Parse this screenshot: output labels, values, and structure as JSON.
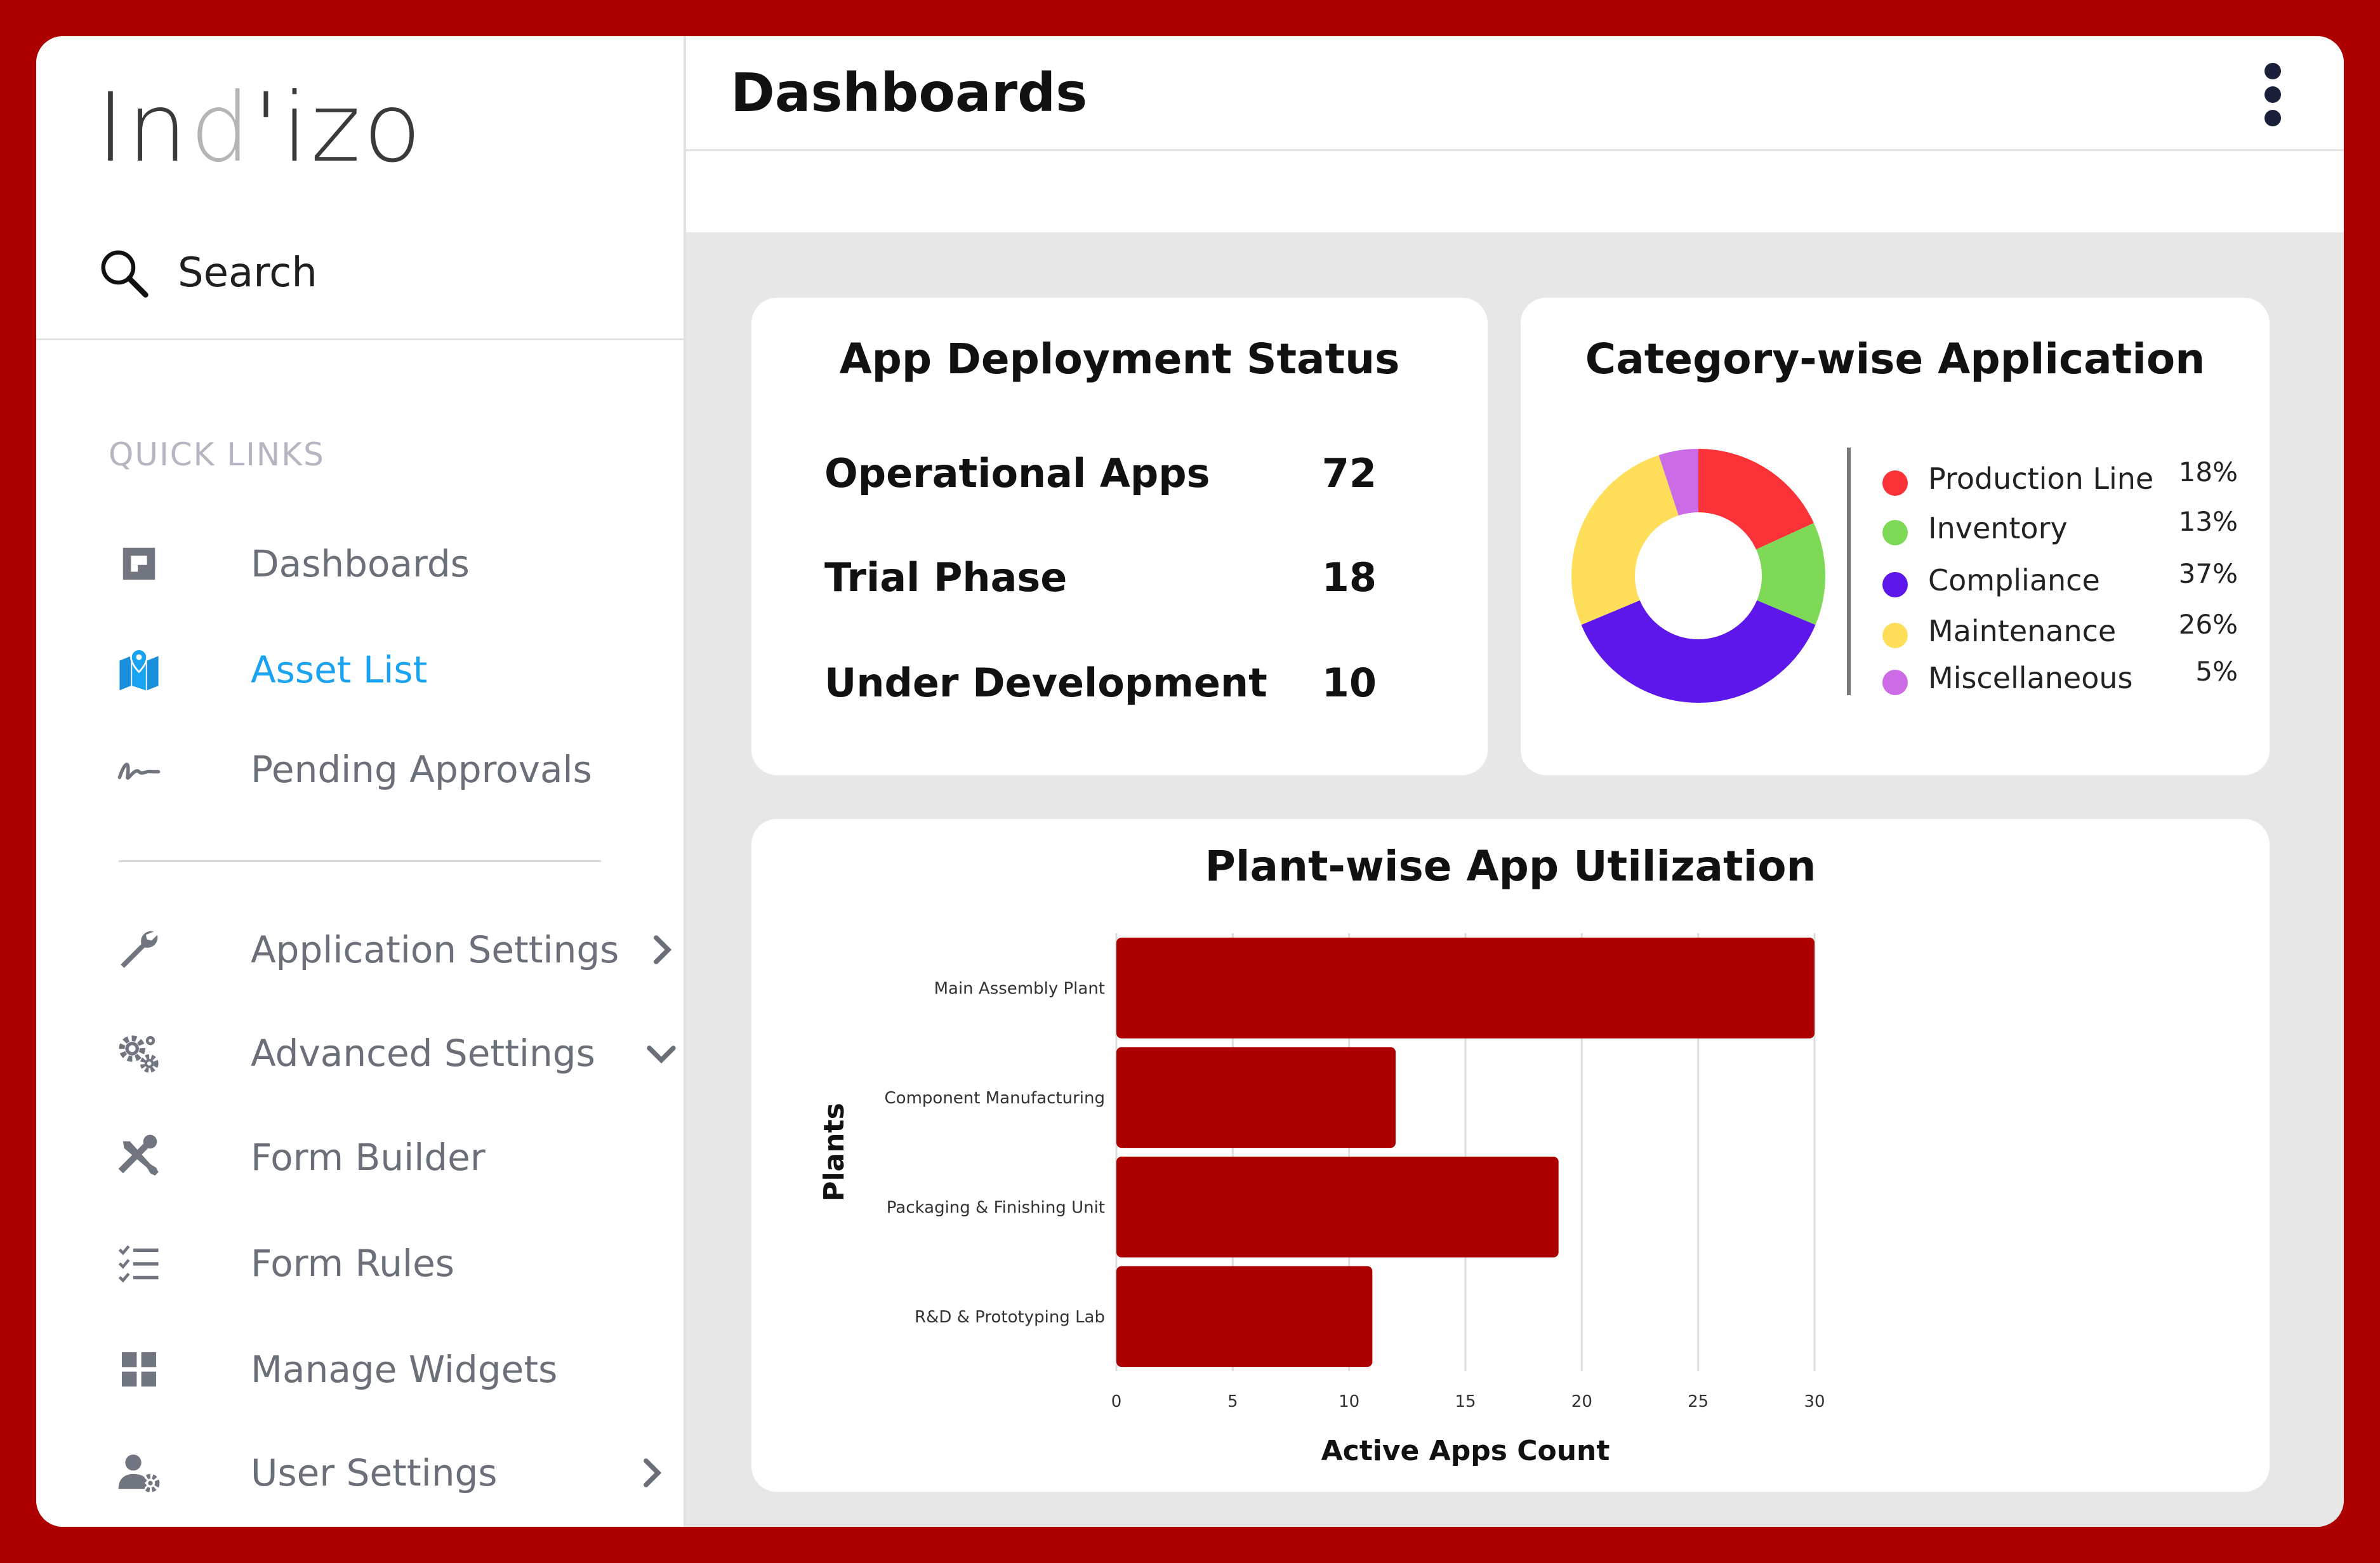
{
  "app": {
    "logo_main_1": "In",
    "logo_accent": "d",
    "logo_main_2": "'izo"
  },
  "sidebar": {
    "search_label": "Search",
    "quick_links_heading": "QUICK LINKS",
    "items": [
      {
        "label": "Dashboards",
        "icon": "dashboard-icon"
      },
      {
        "label": "Asset List",
        "icon": "map-pin-icon",
        "active": true
      },
      {
        "label": "Pending Approvals",
        "icon": "signature-icon"
      },
      {
        "label": "Application Settings",
        "icon": "wrench-icon",
        "chevron": "right"
      },
      {
        "label": "Advanced Settings",
        "icon": "gears-icon",
        "chevron": "down"
      },
      {
        "label": "Form Builder",
        "icon": "tools-icon"
      },
      {
        "label": "Form Rules",
        "icon": "checklist-icon"
      },
      {
        "label": "Manage Widgets",
        "icon": "grid-icon"
      },
      {
        "label": "User Settings",
        "icon": "user-gear-icon",
        "chevron": "right"
      }
    ]
  },
  "header": {
    "title": "Dashboards",
    "menu_icon": "kebab-menu-icon"
  },
  "deployment": {
    "title": "App Deployment Status",
    "rows": [
      {
        "label": "Operational Apps",
        "value": "72"
      },
      {
        "label": "Trial Phase",
        "value": "18"
      },
      {
        "label": "Under Development",
        "value": "10"
      }
    ]
  },
  "category": {
    "title": "Category-wise Application",
    "slices": [
      {
        "name": "Production Line",
        "pct": "18%",
        "value": 18,
        "color": "#fb3338"
      },
      {
        "name": "Inventory",
        "pct": "13%",
        "value": 13,
        "color": "#7ed957"
      },
      {
        "name": "Compliance",
        "pct": "37%",
        "value": 37,
        "color": "#5e17eb"
      },
      {
        "name": "Maintenance",
        "pct": "26%",
        "value": 26,
        "color": "#ffde59"
      },
      {
        "name": "Miscellaneous",
        "pct": "5%",
        "value": 5,
        "color": "#cb6ce6"
      }
    ]
  },
  "chart_data": {
    "type": "bar",
    "orientation": "horizontal",
    "title": "Plant-wise App Utilization",
    "xlabel": "Active Apps Count",
    "ylabel": "Plants",
    "categories": [
      "Main Assembly Plant",
      "Component Manufacturing",
      "Packaging & Finishing Unit",
      "R&D & Prototyping Lab"
    ],
    "values": [
      30,
      12,
      19,
      11
    ],
    "xlim": [
      0,
      30
    ],
    "xticks": [
      "0",
      "5",
      "10",
      "15",
      "20",
      "25",
      "30"
    ],
    "grid": true,
    "bar_color": "#ad0000"
  }
}
